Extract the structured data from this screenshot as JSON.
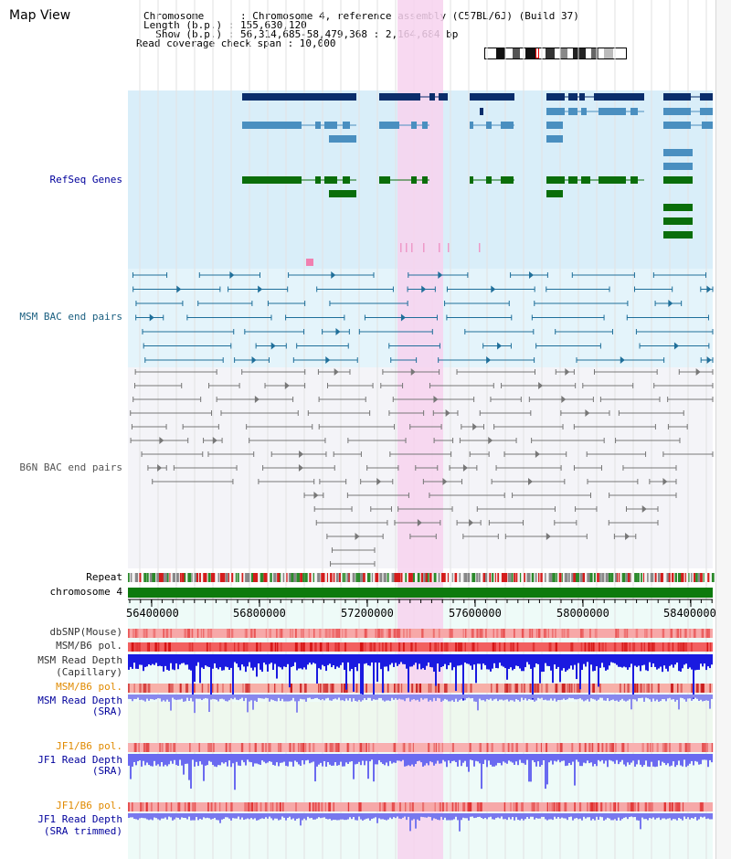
{
  "map_view": {
    "title": "Map View",
    "info_lines": [
      "Chromosome      : Chromosome 4, reference assembly (C57BL/6J) (Build 37)",
      "Length (b.p.) : 155,630,120",
      "  Show (b.p.) : 56,314,685-58,479,368 : 2,164,684 bp",
      "Read coverage check span : 10,000"
    ],
    "axis_ticks": [
      "56400000",
      "56800000",
      "57200000",
      "57600000",
      "58000000",
      "58400000"
    ],
    "tracks": {
      "refseq": "RefSeq Genes",
      "msm_bac": "MSM BAC end pairs",
      "b6n_bac": "B6N BAC end pairs",
      "repeat": "Repeat",
      "chromosome": "chromosome 4",
      "dbsnp": "dbSNP(Mouse)",
      "msm_b6_pol": "MSM/B6 pol.",
      "msm_read_depth_cap_1": "MSM Read Depth",
      "msm_read_depth_cap_2": "(Capillary)",
      "msm_b6_pol_2": "MSM/B6 pol.",
      "msm_read_depth_sra_1": "MSM Read Depth",
      "msm_read_depth_sra_2": "(SRA)",
      "jf1_b6_pol": "JF1/B6 pol.",
      "jf1_read_depth_sra_1": "JF1 Read Depth",
      "jf1_read_depth_sra_2": "(SRA)",
      "jf1_b6_pol_2": "JF1/B6 pol.",
      "jf1_read_depth_trim_1": "JF1 Read Depth",
      "jf1_read_depth_trim_2": "(SRA trimmed)"
    },
    "colors": {
      "gene_dark": "#0b2d6b",
      "gene_mid": "#4a8fc0",
      "gene_green": "#0a6e0a",
      "msm_bac": "#1f6f9a",
      "b6n_bac": "#777777",
      "highlight": "#f7d2ee",
      "label_blue": "#00009c",
      "label_orange": "#e08a00",
      "label_teal": "#1a5f80",
      "label_gray": "#555555"
    }
  }
}
